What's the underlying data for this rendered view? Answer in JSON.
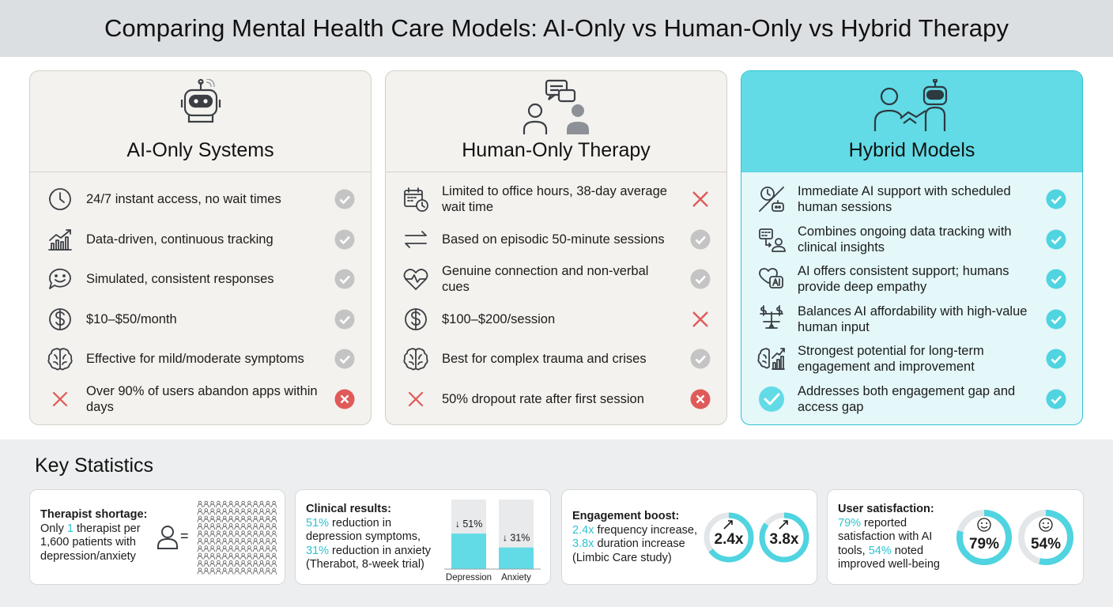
{
  "title": "Comparing Mental Health Care Models: AI-Only vs Human-Only vs Hybrid Therapy",
  "colors": {
    "accent": "#62dbe6",
    "check": "#c4c4c4",
    "check_accent": "#4fd4e0",
    "cross": "#e05a5a"
  },
  "columns": [
    {
      "icon": "robot-icon",
      "title": "AI-Only Systems",
      "rows": [
        {
          "icon": "clock-icon",
          "text": "24/7 instant access, no wait times",
          "mark": "check"
        },
        {
          "icon": "trend-chart-icon",
          "text": "Data-driven, continuous tracking",
          "mark": "check"
        },
        {
          "icon": "smile-bubble-icon",
          "text": "Simulated, consistent responses",
          "mark": "check"
        },
        {
          "icon": "dollar-icon",
          "text": "$10–$50/month",
          "mark": "check"
        },
        {
          "icon": "brain-icon",
          "text": "Effective for mild/moderate symptoms",
          "mark": "check"
        },
        {
          "icon": "cross-icon",
          "text": "Over 90% of users abandon apps within days",
          "mark": "cross-circle"
        }
      ]
    },
    {
      "icon": "people-chat-icon",
      "title": "Human-Only Therapy",
      "rows": [
        {
          "icon": "calendar-clock-icon",
          "text": "Limited to office hours, 38-day average wait time",
          "mark": "cross"
        },
        {
          "icon": "arrows-icon",
          "text": "Based on episodic 50-minute sessions",
          "mark": "check"
        },
        {
          "icon": "heartbeat-icon",
          "text": "Genuine connection and non-verbal cues",
          "mark": "check"
        },
        {
          "icon": "dollar-icon",
          "text": "$100–$200/session",
          "mark": "cross"
        },
        {
          "icon": "brain-icon",
          "text": "Best for complex trauma and crises",
          "mark": "check"
        },
        {
          "icon": "cross-icon",
          "text": "50% dropout rate after first session",
          "mark": "cross-circle"
        }
      ]
    },
    {
      "icon": "handshake-icon",
      "title": "Hybrid Models",
      "rows": [
        {
          "icon": "clock-robot-icon",
          "text": "Immediate AI support with scheduled human sessions",
          "mark": "check-accent"
        },
        {
          "icon": "data-person-icon",
          "text": "Combines ongoing data tracking with clinical insights",
          "mark": "check-accent"
        },
        {
          "icon": "ai-heart-icon",
          "text": "AI offers consistent support; humans provide deep empathy",
          "mark": "check-accent"
        },
        {
          "icon": "scale-dollar-icon",
          "text": "Balances AI affordability with high-value human input",
          "mark": "check-accent"
        },
        {
          "icon": "brain-chart-icon",
          "text": "Strongest potential for long-term engagement and improvement",
          "mark": "check-accent"
        },
        {
          "icon": "check-circle-icon",
          "text": "Addresses both engagement gap and access gap",
          "mark": "check-accent"
        }
      ]
    }
  ],
  "stats": {
    "title": "Key Statistics",
    "shortage": {
      "label": "Therapist shortage:",
      "l1a": "Only ",
      "l1b": "1",
      "l1c": " therapist per",
      "l2": "1,600 patients with",
      "l3": "depression/anxiety",
      "equals": "="
    },
    "clinical": {
      "label": "Clinical results:",
      "l1a": "51%",
      "l1b": " reduction in",
      "l2": "depression symptoms,",
      "l3a": "31%",
      "l3b": " reduction in anxiety",
      "l4": "(Therabot, 8-week trial)"
    },
    "engagement": {
      "label": "Engagement boost:",
      "l1a": "2.4x",
      "l1b": " frequency increase,",
      "l2a": "3.8x",
      "l2b": " duration increase",
      "l3": "(Limbic Care study)"
    },
    "satisfaction": {
      "label": "User satisfaction:",
      "l1a": "79%",
      "l1b": " reported",
      "l2": "satisfaction with AI",
      "l3a": "tools, ",
      "l3b": "54%",
      "l3c": " noted",
      "l4": "improved well-being"
    }
  },
  "chart_data": {
    "type": "bar",
    "categories": [
      "Depression",
      "Anxiety"
    ],
    "values": [
      51,
      31
    ],
    "value_labels": [
      "↓ 51%",
      "↓ 31%"
    ],
    "ylim": [
      0,
      100
    ]
  },
  "engagement_rings": [
    {
      "label": "2.4x",
      "value": 2.4,
      "fraction": 0.65
    },
    {
      "label": "3.8x",
      "value": 3.8,
      "fraction": 0.85
    }
  ],
  "satisfaction_rings": [
    {
      "label": "79%",
      "fraction": 0.79
    },
    {
      "label": "54%",
      "fraction": 0.54
    }
  ]
}
